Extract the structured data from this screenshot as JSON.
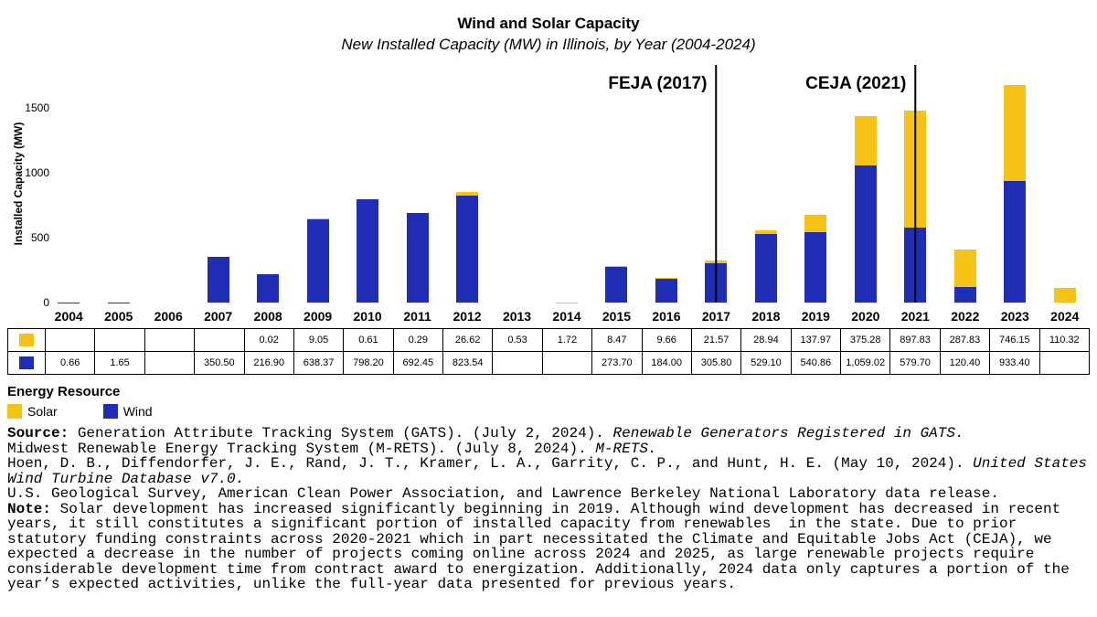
{
  "title": "Wind and Solar Capacity",
  "subtitle": "New Installed Capacity (MW) in Illinois, by Year (2004-2024)",
  "chart_data": {
    "type": "bar",
    "stacked": true,
    "title": "Wind and Solar Capacity",
    "subtitle": "New Installed Capacity (MW) in Illinois, by Year (2004-2024)",
    "xlabel": "",
    "ylabel": "Installed Capacity (MW)",
    "ylim": [
      0,
      1800
    ],
    "yticks": [
      0,
      500,
      1000,
      1500
    ],
    "grid": false,
    "legend_position": "bottom-left",
    "categories": [
      "2004",
      "2005",
      "2006",
      "2007",
      "2008",
      "2009",
      "2010",
      "2011",
      "2012",
      "2013",
      "2014",
      "2015",
      "2016",
      "2017",
      "2018",
      "2019",
      "2020",
      "2021",
      "2022",
      "2023",
      "2024"
    ],
    "series": [
      {
        "name": "Wind",
        "color": "#1F2DB4",
        "values": [
          0.66,
          1.65,
          0,
          350.5,
          216.9,
          638.37,
          798.2,
          692.45,
          823.54,
          0,
          0,
          273.7,
          184.0,
          305.8,
          529.1,
          540.86,
          1059.02,
          579.7,
          120.4,
          933.4,
          0
        ]
      },
      {
        "name": "Solar",
        "color": "#F5C216",
        "values": [
          0,
          0,
          0,
          0,
          0.02,
          9.05,
          0.61,
          0.29,
          26.62,
          0.53,
          1.72,
          8.47,
          9.66,
          21.57,
          28.94,
          137.97,
          375.28,
          897.83,
          287.83,
          746.15,
          110.32
        ]
      }
    ],
    "annotations": [
      {
        "label": "FEJA (2017)",
        "category": "2017"
      },
      {
        "label": "CEJA (2021)",
        "category": "2021"
      }
    ]
  },
  "table": {
    "rows": [
      {
        "series": "Solar",
        "color": "#F5C216",
        "values": [
          "",
          "",
          "",
          "",
          "0.02",
          "9.05",
          "0.61",
          "0.29",
          "26.62",
          "0.53",
          "1.72",
          "8.47",
          "9.66",
          "21.57",
          "28.94",
          "137.97",
          "375.28",
          "897.83",
          "287.83",
          "746.15",
          "110.32"
        ]
      },
      {
        "series": "Wind",
        "color": "#1F2DB4",
        "values": [
          "0.66",
          "1.65",
          "",
          "350.50",
          "216.90",
          "638.37",
          "798.20",
          "692.45",
          "823.54",
          "",
          "",
          "273.70",
          "184.00",
          "305.80",
          "529.10",
          "540.86",
          "1,059.02",
          "579.70",
          "120.40",
          "933.40",
          ""
        ]
      }
    ]
  },
  "legend": {
    "heading": "Energy Resource",
    "items": [
      {
        "label": "Solar",
        "color": "#F5C216"
      },
      {
        "label": "Wind",
        "color": "#1F2DB4"
      }
    ]
  },
  "notes": {
    "lines": [
      [
        {
          "t": "Source: ",
          "b": true
        },
        {
          "t": "Generation Attribute Tracking System (GATS). (July 2, 2024). "
        },
        {
          "t": "Renewable Generators Registered in GATS.",
          "i": true
        }
      ],
      [
        {
          "t": "Midwest Renewable Energy Tracking System (M-RETS). (July 8, 2024). "
        },
        {
          "t": "M-RETS.",
          "i": true
        }
      ],
      [
        {
          "t": "Hoen, D. B., Diffendorfer, J. E., Rand, J. T., Kramer, L. A., Garrity, C. P., and Hunt, H. E. (May 10, 2024). "
        },
        {
          "t": "United States Wind Turbine Database v7.0.",
          "i": true
        }
      ],
      [
        {
          "t": "U.S. Geological Survey, American Clean Power Association, and Lawrence Berkeley National Laboratory data release."
        }
      ],
      [
        {
          "t": "Note: ",
          "b": true
        },
        {
          "t": "Solar development has increased significantly beginning in 2019. Although wind development has decreased in recent years, it still constitutes a significant portion of installed capacity from renewables  in the state. Due to prior statutory funding constraints across 2020-2021 which in part necessitated the Climate and Equitable Jobs Act (CEJA), we expected a decrease in the number of projects coming online across 2024 and 2025, as large renewable projects require considerable development time from contract award to energization. Additionally, 2024 data only captures a portion of the year’s expected activities, unlike the full-year data presented for previous years."
        }
      ]
    ]
  }
}
